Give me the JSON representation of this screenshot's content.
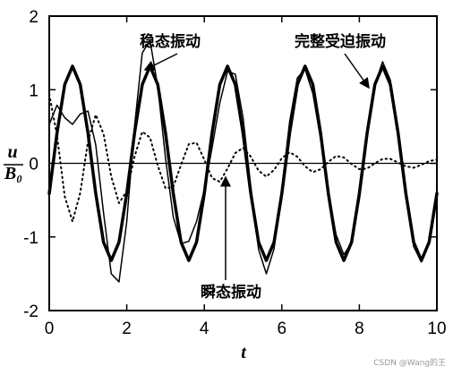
{
  "chart_data": {
    "type": "line",
    "x_label": "t",
    "y_label": {
      "numerator": "u",
      "denominator": "B₀"
    },
    "annotations": [
      "稳态振动",
      "完整受迫振动",
      "瞬态振动"
    ],
    "watermark": "CSDN @Wang的王",
    "x": [
      0,
      0.2,
      0.4,
      0.6,
      0.8,
      1,
      1.2,
      1.4,
      1.6,
      1.8,
      2,
      2.2,
      2.4,
      2.6,
      2.8,
      3,
      3.2,
      3.4,
      3.6,
      3.8,
      4,
      4.2,
      4.4,
      4.6,
      4.8,
      5,
      5.2,
      5.4,
      5.6,
      5.8,
      6,
      6.2,
      6.4,
      6.6,
      6.8,
      7,
      7.2,
      7.4,
      7.6,
      7.8,
      8,
      8.2,
      8.4,
      8.6,
      8.8,
      9,
      9.2,
      9.4,
      9.6,
      9.8,
      10
    ],
    "series": [
      {
        "name": "稳态振动",
        "color": "#000000",
        "style": "solid",
        "line_width": 3.5,
        "values": [
          -0.41,
          0.41,
          1.07,
          1.32,
          1.07,
          0.41,
          -0.41,
          -1.07,
          -1.32,
          -1.07,
          -0.41,
          0.41,
          1.07,
          1.32,
          1.07,
          0.41,
          -0.41,
          -1.07,
          -1.32,
          -1.07,
          -0.41,
          0.41,
          1.07,
          1.32,
          1.07,
          0.41,
          -0.41,
          -1.07,
          -1.32,
          -1.07,
          -0.41,
          0.41,
          1.07,
          1.32,
          1.07,
          0.41,
          -0.41,
          -1.07,
          -1.32,
          -1.07,
          -0.41,
          0.41,
          1.07,
          1.32,
          1.07,
          0.41,
          -0.41,
          -1.07,
          -1.32,
          -1.07,
          -0.41
        ]
      },
      {
        "name": "完整受迫振动",
        "color": "#000000",
        "style": "solid",
        "line_width": 1.5,
        "values": [
          0.53,
          0.79,
          0.62,
          0.53,
          0.67,
          0.71,
          0.25,
          -0.67,
          -1.5,
          -1.61,
          -0.79,
          0.5,
          1.5,
          1.67,
          1.04,
          0.07,
          -0.73,
          -1.09,
          -1.06,
          -0.79,
          -0.36,
          0.21,
          0.82,
          1.25,
          1.21,
          0.62,
          -0.32,
          -1.17,
          -1.5,
          -1.16,
          -0.34,
          0.56,
          1.16,
          1.28,
          0.95,
          0.33,
          -0.39,
          -0.97,
          -1.24,
          -1.08,
          -0.49,
          0.34,
          1.07,
          1.38,
          1.13,
          0.42,
          -0.45,
          -1.13,
          -1.34,
          -1.04,
          -0.36
        ]
      },
      {
        "name": "瞬态振动",
        "color": "#000000",
        "style": "dotted",
        "line_width": 2,
        "values": [
          0.94,
          0.38,
          -0.45,
          -0.79,
          -0.4,
          0.3,
          0.66,
          0.4,
          -0.18,
          -0.54,
          -0.38,
          0.09,
          0.43,
          0.35,
          -0.03,
          -0.34,
          -0.32,
          -0.02,
          0.26,
          0.28,
          0.05,
          -0.2,
          -0.25,
          -0.07,
          0.14,
          0.21,
          0.09,
          -0.1,
          -0.18,
          -0.09,
          0.07,
          0.15,
          0.09,
          -0.04,
          -0.12,
          -0.08,
          0.02,
          0.1,
          0.08,
          -0.01,
          -0.08,
          -0.07,
          0,
          0.06,
          0.06,
          0.01,
          -0.04,
          -0.06,
          -0.02,
          0.03,
          0.05
        ]
      }
    ],
    "xlim": [
      0,
      10
    ],
    "xticks": [
      0,
      2,
      4,
      6,
      8,
      10
    ],
    "ylim": [
      -2,
      2
    ],
    "yticks": [
      -2,
      -1,
      0,
      1,
      2
    ],
    "zero_line": true
  }
}
